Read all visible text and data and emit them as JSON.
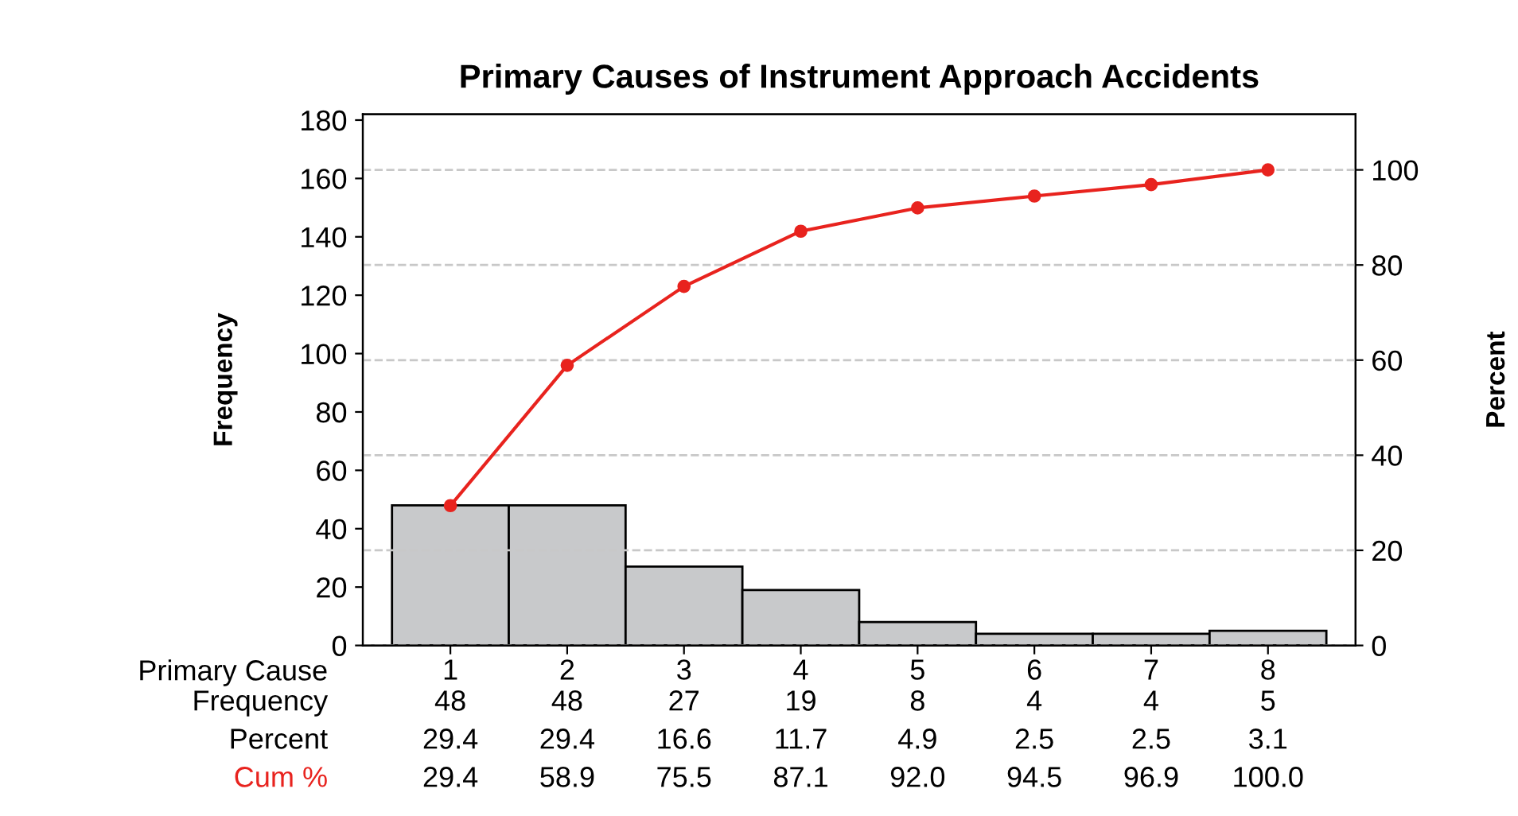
{
  "chart_data": {
    "type": "bar",
    "title": "Primary Causes of Instrument Approach Accidents",
    "xlabel": "Primary Cause",
    "ylabel": "Frequency",
    "y2label": "Percent",
    "categories": [
      "1",
      "2",
      "3",
      "4",
      "5",
      "6",
      "7",
      "8"
    ],
    "series": [
      {
        "name": "Frequency",
        "color": "#c8c9cb",
        "values": [
          48,
          48,
          27,
          19,
          8,
          4,
          4,
          5
        ],
        "value_labels": [
          "48",
          "48",
          "27",
          "19",
          "8",
          "4",
          "4",
          "5"
        ]
      },
      {
        "name": "Cum %",
        "type": "line",
        "axis": "y2",
        "color": "#e8231e",
        "marker": "circle",
        "values": [
          29.4,
          58.9,
          75.5,
          87.1,
          92.0,
          94.5,
          96.9,
          100.0
        ],
        "value_labels": [
          "29.4",
          "58.9",
          "75.5",
          "87.1",
          "92.0",
          "94.5",
          "96.9",
          "100.0"
        ]
      }
    ],
    "ylim": [
      0,
      182
    ],
    "yticks": [
      0,
      20,
      40,
      60,
      80,
      100,
      120,
      140,
      160,
      180
    ],
    "y2lim": [
      0,
      111.7
    ],
    "y2ticks": [
      0,
      20,
      40,
      60,
      80,
      100
    ],
    "annotations": [
      "Percent",
      "29.4",
      "29.4",
      "16.6",
      "11.7",
      "4.9",
      "2.5",
      "2.5",
      "3.1"
    ],
    "grid": "y2",
    "legend": false
  }
}
